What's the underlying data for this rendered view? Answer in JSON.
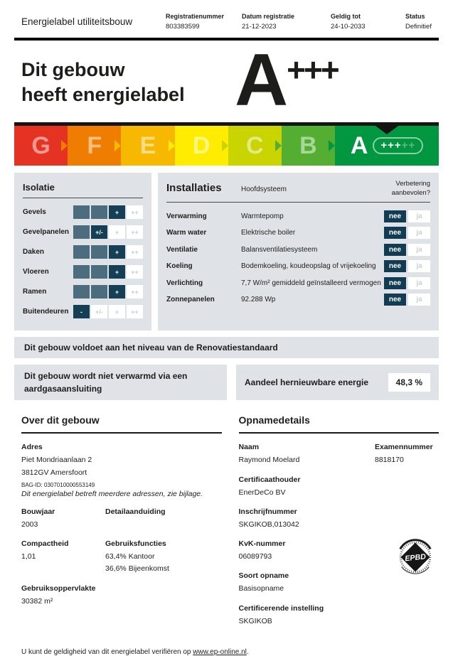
{
  "header": {
    "title": "Energielabel utiliteitsbouw",
    "fields": [
      {
        "label": "Registratienummer",
        "value": "803383599"
      },
      {
        "label": "Datum registratie",
        "value": "21-12-2023"
      },
      {
        "label": "Geldig tot",
        "value": "24-10-2033"
      },
      {
        "label": "Status",
        "value": "Definitief"
      }
    ]
  },
  "hero": {
    "line1": "Dit gebouw",
    "line2": "heeft energielabel",
    "rating": "A",
    "rating_sup": "+++"
  },
  "scale": {
    "segments": [
      {
        "letter": "G",
        "color": "#e53323"
      },
      {
        "letter": "F",
        "color": "#ef7d01"
      },
      {
        "letter": "E",
        "color": "#f6b801"
      },
      {
        "letter": "D",
        "color": "#ffec00"
      },
      {
        "letter": "C",
        "color": "#cad400"
      },
      {
        "letter": "B",
        "color": "#53ae32"
      },
      {
        "letter": "A",
        "color": "#019640",
        "active": true,
        "plus_active": "+++",
        "plus_inactive": "++"
      }
    ]
  },
  "isolatie": {
    "title": "Isolatie",
    "symbols": [
      "-",
      "+/-",
      "+",
      "++"
    ],
    "rows": [
      {
        "label": "Gevels",
        "level": 3
      },
      {
        "label": "Gevelpanelen",
        "level": 2
      },
      {
        "label": "Daken",
        "level": 3
      },
      {
        "label": "Vloeren",
        "level": 3
      },
      {
        "label": "Ramen",
        "level": 3
      },
      {
        "label": "Buitendeuren",
        "level": 1
      }
    ]
  },
  "installaties": {
    "title": "Installaties",
    "subtitle": "Hoofdsysteem",
    "improvement_header": "Verbetering aanbevolen?",
    "no_label": "nee",
    "yes_label": "ja",
    "rows": [
      {
        "label": "Verwarming",
        "value": "Warmtepomp",
        "improve": "nee"
      },
      {
        "label": "Warm water",
        "value": "Elektrische boiler",
        "improve": "nee"
      },
      {
        "label": "Ventilatie",
        "value": "Balansventilatiesysteem",
        "improve": "nee"
      },
      {
        "label": "Koeling",
        "value": "Bodemkoeling, koudeopslag of vrijekoeling",
        "improve": "nee"
      },
      {
        "label": "Verlichting",
        "value": "7,7 W/m² gemiddeld geïnstalleerd vermogen",
        "improve": "nee"
      },
      {
        "label": "Zonnepanelen",
        "value": "92.288 Wp",
        "improve": "nee"
      }
    ]
  },
  "banner": {
    "text": "Dit gebouw voldoet aan het niveau van de Renovatiestandaard"
  },
  "highlights": {
    "gas_free": "Dit gebouw wordt niet verwarmd via een aardgasaansluiting",
    "renewable_label": "Aandeel hernieuwbare energie",
    "renewable_value": "48,3 %"
  },
  "about": {
    "title": "Over dit gebouw",
    "adres_label": "Adres",
    "adres_line1": "Piet Mondriaanlaan 2",
    "adres_line2": "3812GV Amersfoort",
    "bag_id": "BAG-ID: 0307010000553149",
    "note": "Dit energielabel betreft meerdere adressen, zie bijlage.",
    "bouwjaar_label": "Bouwjaar",
    "bouwjaar": "2003",
    "detail_label": "Detailaanduiding",
    "detail": "",
    "compactheid_label": "Compactheid",
    "compactheid": "1,01",
    "functies_label": "Gebruiksfuncties",
    "functies": [
      "63,4%  Kantoor",
      "36,6%  Bijeenkomst"
    ],
    "oppervlakte_label": "Gebruiksoppervlakte",
    "oppervlakte": "30382 m²"
  },
  "opname": {
    "title": "Opnamedetails",
    "naam_label": "Naam",
    "naam": "Raymond Moelard",
    "examen_label": "Examennummer",
    "examen": "8818170",
    "cert_label": "Certificaathouder",
    "cert": "EnerDeCo BV",
    "inschrijf_label": "Inschrijfnummer",
    "inschrijf": "SKGIKOB,013042",
    "kvk_label": "KvK-nummer",
    "kvk": "06089793",
    "soort_label": "Soort opname",
    "soort": "Basisopname",
    "instelling_label": "Certificerende instelling",
    "instelling": "SKGIKOB",
    "seal_text": "EPBD"
  },
  "footer": {
    "text": "U kunt de geldigheid van dit energielabel verifiëren op ",
    "link": "www.ep-online.nl",
    "suffix": "."
  },
  "colors": {
    "dark_navy": "#113c53",
    "cell_filled": "#4b6d7d",
    "cell_active": "#143f55",
    "panel_bg": "#dfe3e7",
    "bar_black": "#141414"
  }
}
